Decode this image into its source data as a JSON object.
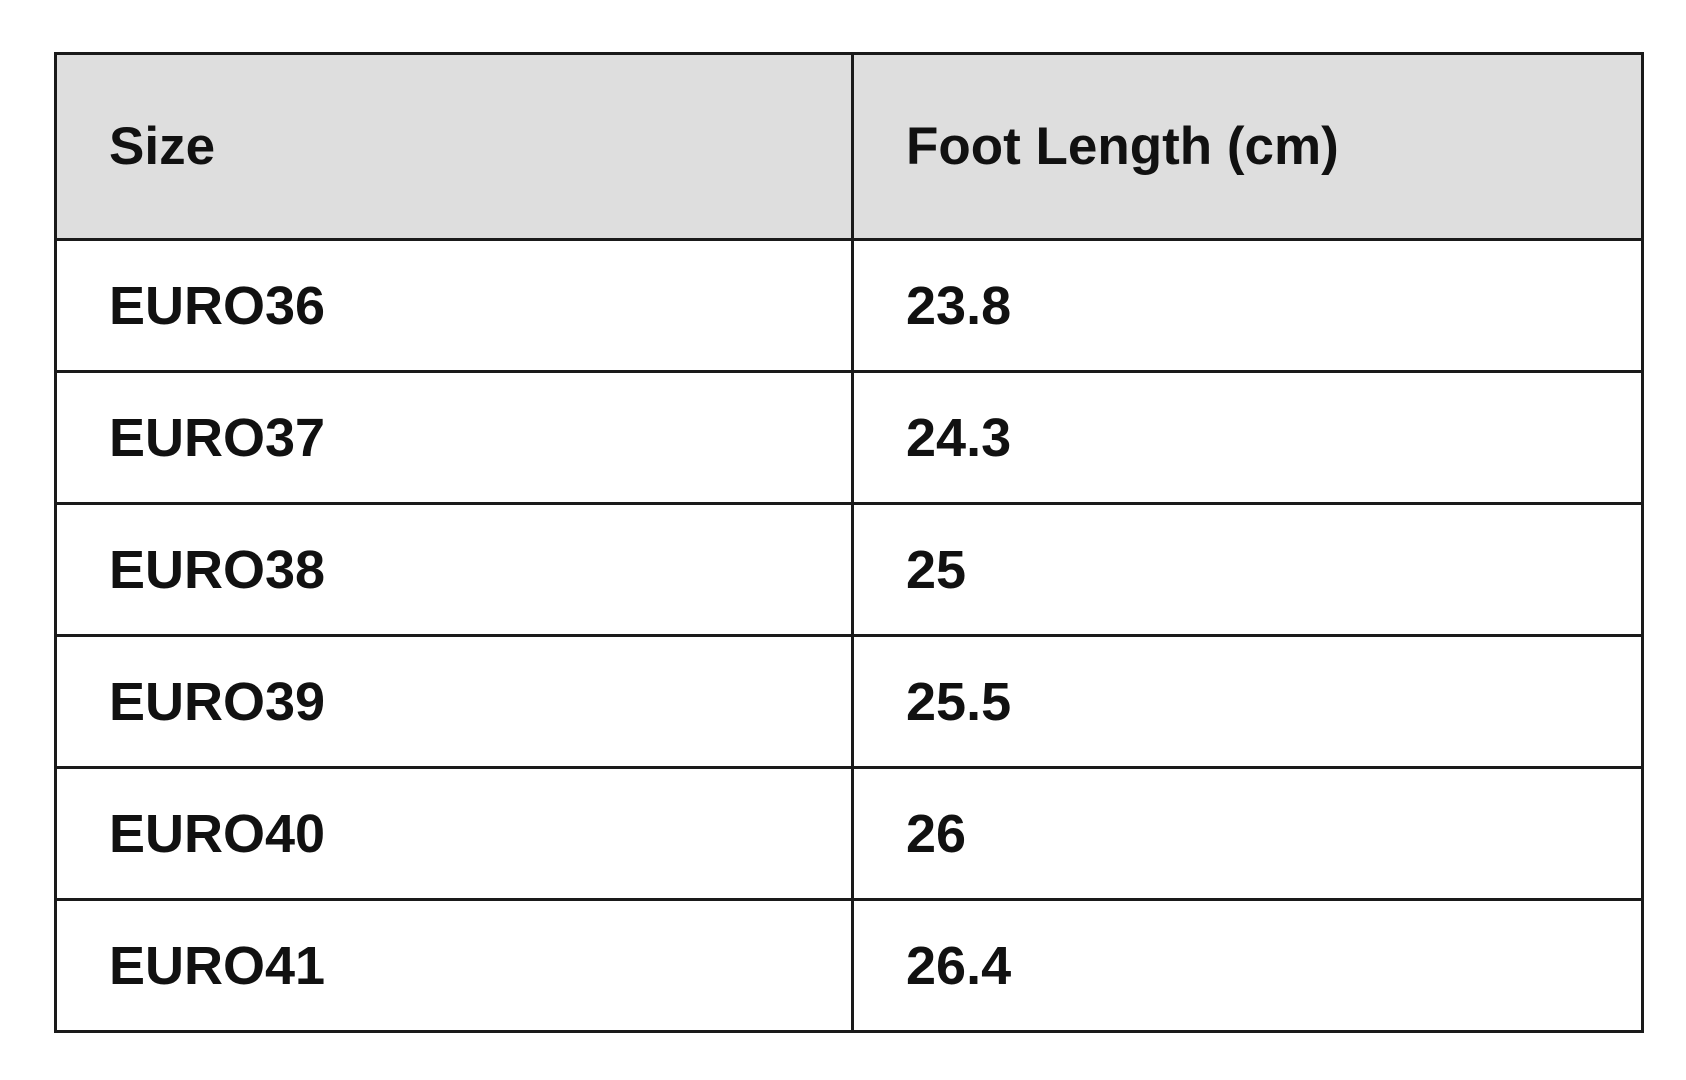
{
  "table": {
    "headers": [
      "Size",
      "Foot Length (cm)"
    ],
    "rows": [
      [
        "EURO36",
        "23.8"
      ],
      [
        "EURO37",
        "24.3"
      ],
      [
        "EURO38",
        "25"
      ],
      [
        "EURO39",
        "25.5"
      ],
      [
        "EURO40",
        "26"
      ],
      [
        "EURO41",
        "26.4"
      ]
    ]
  },
  "colors": {
    "header_bg": "#dedede",
    "border": "#1a1a1a"
  }
}
